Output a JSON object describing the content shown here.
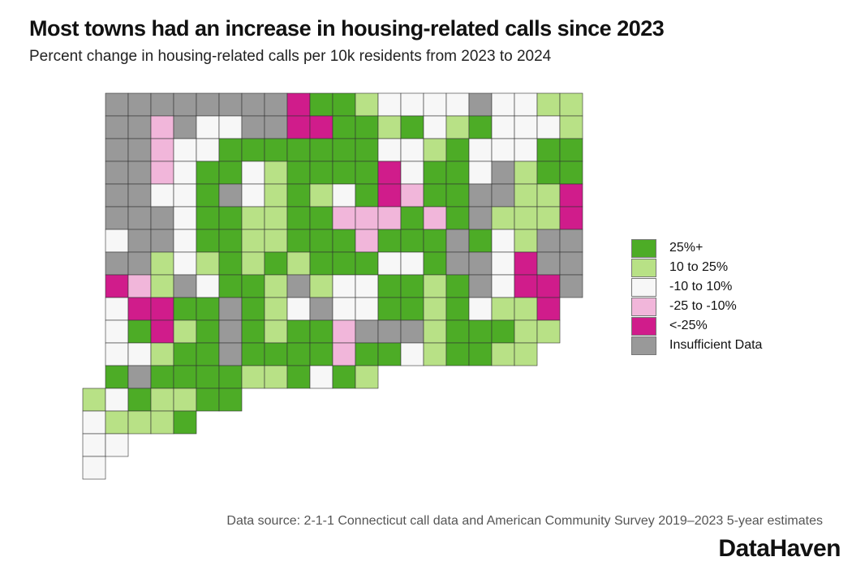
{
  "title": "Most towns had an increase in housing-related calls since 2023",
  "subtitle": "Percent change in housing-related calls per 10k residents from 2023 to 2024",
  "legend": [
    {
      "label": "25%+",
      "color": "#4dac26"
    },
    {
      "label": "10 to 25%",
      "color": "#b8e186"
    },
    {
      "label": "-10 to 10%",
      "color": "#f7f7f7"
    },
    {
      "label": "-25 to -10%",
      "color": "#f1b6da"
    },
    {
      "label": "<-25%",
      "color": "#d01c8b"
    },
    {
      "label": "Insufficient Data",
      "color": "#999999"
    }
  ],
  "source": "Data source: 2-1-1 Connecticut call data and American Community Survey 2019–2023 5-year estimates",
  "logo": "DataHaven"
}
